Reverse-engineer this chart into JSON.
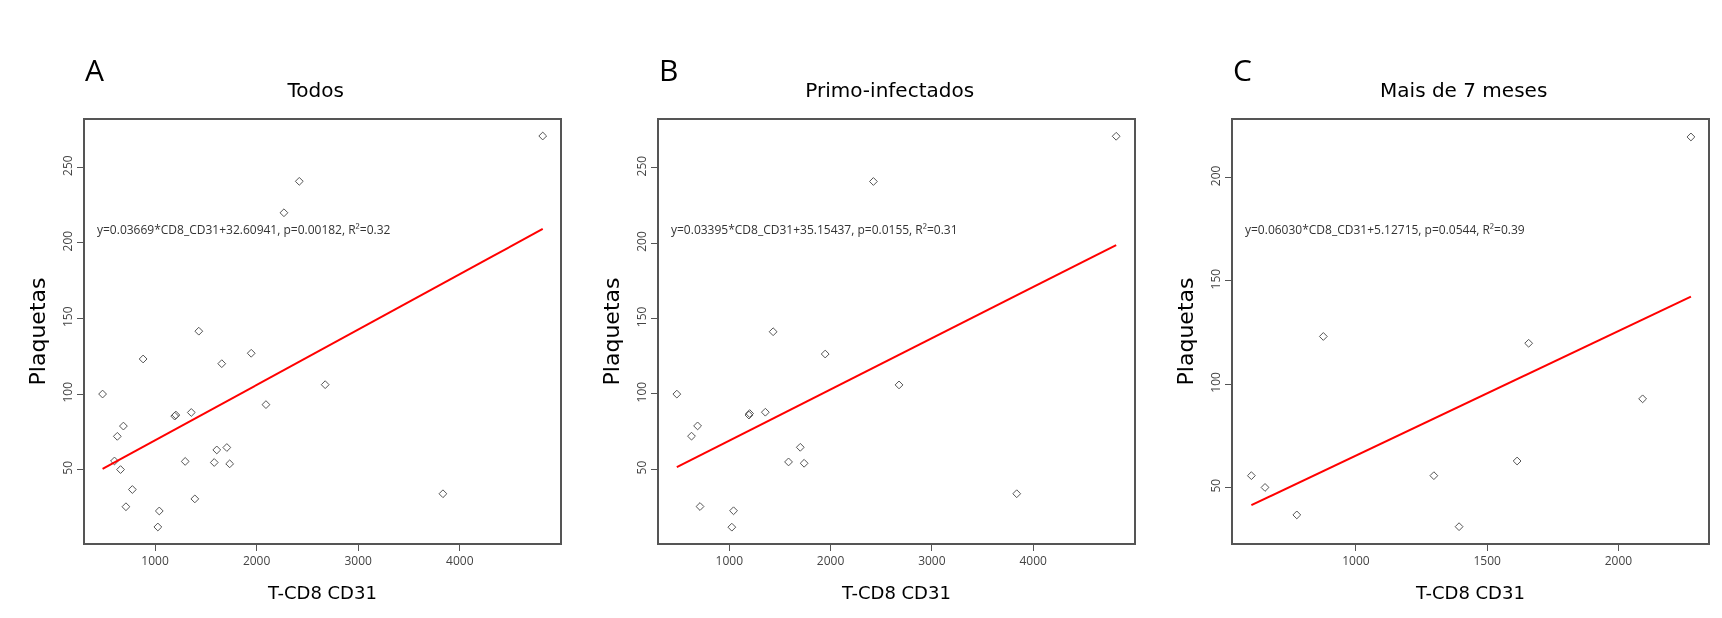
{
  "chart_data": [
    {
      "type": "scatter",
      "title": "Todos",
      "xlabel": "T-CD8 CD31",
      "ylabel": "Plaquetas",
      "annotations": [
        "A",
        "y=0.03669*CD8_CD31+32.60941, p=0.00182, R²=0.32"
      ],
      "xlim": [
        311,
        4986
      ],
      "ylim": [
        1.4,
        281.4
      ],
      "xticks": [
        1000,
        2000,
        3000,
        4000
      ],
      "yticks": [
        50,
        100,
        150,
        200,
        250
      ],
      "grid": false,
      "series": [
        {
          "marker": "diamond",
          "color": "#555555",
          "x": [
            4816,
            2420,
            2269,
            1431,
            883,
            1947,
            1657,
            2675,
            484,
            2092,
            1205,
            1194,
            1357,
            689,
            629,
            601,
            661,
            1297,
            1608,
            1707,
            1583,
            1735,
            777,
            714,
            1392,
            1042,
            1028,
            3834
          ],
          "values": [
            270.8,
            240.8,
            220,
            141.6,
            123.2,
            127,
            120.1,
            106.2,
            100,
            93,
            86.1,
            85.4,
            87.8,
            78.8,
            72,
            55.7,
            50,
            55.4,
            63,
            64.6,
            54.7,
            53.8,
            36.8,
            25.4,
            30.6,
            22.6,
            12,
            34
          ]
        },
        {
          "type": "line",
          "marker": "none",
          "color": "#ff0000",
          "x": [
            484,
            4816
          ],
          "values": [
            50.4,
            209.3
          ]
        }
      ]
    },
    {
      "type": "scatter",
      "title": "Primo-infectados",
      "xlabel": "T-CD8 CD31",
      "ylabel": "Plaquetas",
      "annotations": [
        "B",
        "y=0.03395*CD8_CD31+35.15437, p=0.0155, R²=0.31"
      ],
      "xlim": [
        306,
        4996
      ],
      "ylim": [
        1.1,
        281.8
      ],
      "xticks": [
        1000,
        2000,
        3000,
        4000
      ],
      "yticks": [
        50,
        100,
        150,
        200,
        250
      ],
      "grid": false,
      "series": [
        {
          "marker": "diamond",
          "color": "#555555",
          "x": [
            4820,
            2423,
            1433,
            1947,
            2676,
            482,
            1194,
            1201,
            1356,
            687,
            627,
            1701,
            1585,
            1739,
            711,
            1042,
            1025,
            3838
          ],
          "values": [
            271,
            241,
            141.3,
            126.5,
            106,
            99.9,
            86,
            87,
            87.9,
            78.8,
            72,
            64.6,
            54.9,
            54,
            25.3,
            22.5,
            11.6,
            33.8
          ]
        },
        {
          "type": "line",
          "marker": "none",
          "color": "#ff0000",
          "x": [
            482,
            4820
          ],
          "values": [
            51.5,
            198.8
          ]
        }
      ]
    },
    {
      "type": "scatter",
      "title": "Mais de 7 meses",
      "xlabel": "T-CD8 CD31",
      "ylabel": "Plaquetas",
      "annotations": [
        "C",
        "y=0.06030*CD8_CD31+5.12715, p=0.0544, R²=0.39"
      ],
      "xlim": [
        532,
        2341
      ],
      "ylim": [
        23.1,
        227.9
      ],
      "xticks": [
        1000,
        1500,
        2000
      ],
      "yticks": [
        50,
        100,
        150,
        200
      ],
      "grid": false,
      "series": [
        {
          "marker": "diamond",
          "color": "#555555",
          "x": [
            2276,
            876,
            1658,
            2092,
            602,
            654,
            1297,
            1614,
            775,
            1393
          ],
          "values": [
            219.7,
            123.1,
            119.8,
            92.9,
            55.7,
            50,
            55.7,
            62.8,
            36.7,
            31
          ]
        },
        {
          "type": "line",
          "marker": "none",
          "color": "#ff0000",
          "x": [
            602,
            2276
          ],
          "values": [
            41.4,
            142.4
          ]
        }
      ]
    }
  ]
}
